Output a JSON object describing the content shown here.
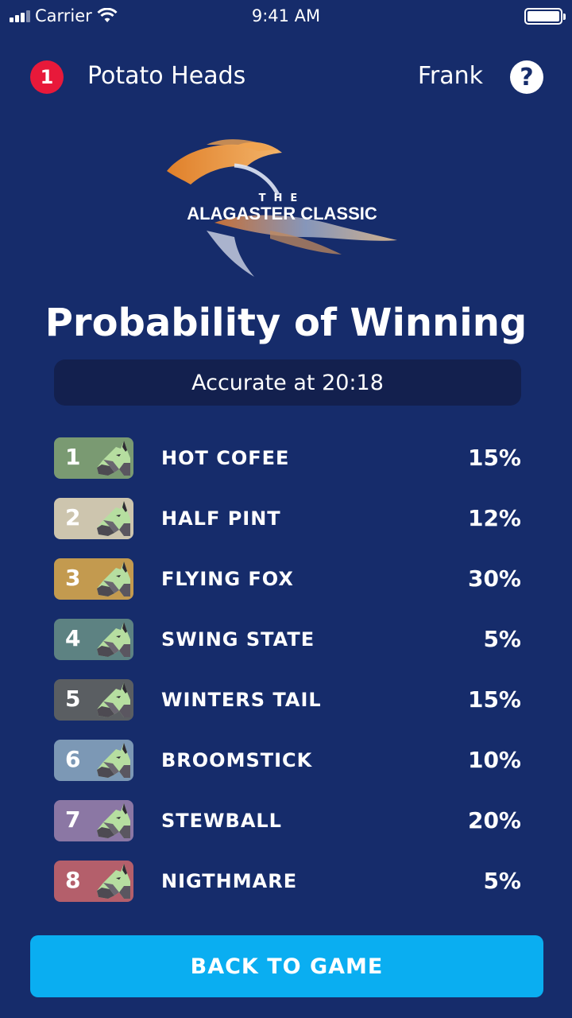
{
  "status_bar": {
    "carrier": "Carrier",
    "time": "9:41 AM"
  },
  "header": {
    "notification_count": "1",
    "team_name": "Potato Heads",
    "user_name": "Frank",
    "help_label": "?"
  },
  "logo": {
    "the": "THE",
    "name": "ALAGASTER CLASSIC"
  },
  "title": "Probability of Winning",
  "timestamp": "Accurate at 20:18",
  "runners": [
    {
      "number": "1",
      "name": "HOT COFEE",
      "probability": "15%",
      "color": "#7a9a72"
    },
    {
      "number": "2",
      "name": "HALF PINT",
      "probability": "12%",
      "color": "#cdc5ae"
    },
    {
      "number": "3",
      "name": "FLYING FOX",
      "probability": "30%",
      "color": "#c39a4f"
    },
    {
      "number": "4",
      "name": "SWING STATE",
      "probability": "5%",
      "color": "#5d8282"
    },
    {
      "number": "5",
      "name": "WINTERS TAIL",
      "probability": "15%",
      "color": "#5a5e62"
    },
    {
      "number": "6",
      "name": "BROOMSTICK",
      "probability": "10%",
      "color": "#7c98b5"
    },
    {
      "number": "7",
      "name": "STEWBALL",
      "probability": "20%",
      "color": "#8b77a4"
    },
    {
      "number": "8",
      "name": "NIGTHMARE",
      "probability": "5%",
      "color": "#b45f6b"
    }
  ],
  "back_button_label": "BACK TO GAME",
  "colors": {
    "background": "#162c6b",
    "badge_red": "#e8193a",
    "button_blue": "#0aaef1",
    "timestamp_bg": "#13204e"
  }
}
